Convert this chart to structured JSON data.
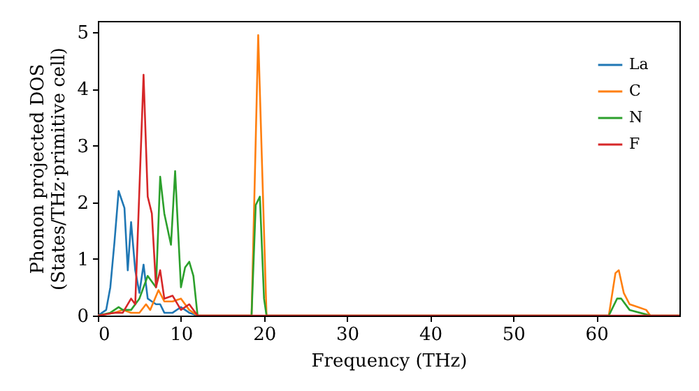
{
  "chart_data": {
    "type": "line",
    "xlabel": "Frequency (THz)",
    "ylabel": "Phonon projected DOS\n(States/THz·primitive cell)",
    "xlim": [
      0,
      70
    ],
    "xticks": [
      0,
      10,
      20,
      30,
      40,
      50,
      60
    ],
    "ylim": [
      0,
      5.2
    ],
    "yticks": [
      0,
      1,
      2,
      3,
      4,
      5
    ],
    "legend": "top right",
    "grid": false,
    "series": [
      {
        "name": "La",
        "color": "#1f77b4",
        "x": [
          0,
          1,
          1.5,
          2,
          2.5,
          3.2,
          3.6,
          4,
          4.5,
          5,
          5.5,
          6,
          6.5,
          7,
          7.5,
          8,
          9,
          10,
          11,
          12
        ],
        "values": [
          0,
          0.1,
          0.5,
          1.3,
          2.2,
          1.9,
          0.8,
          1.65,
          0.8,
          0.4,
          0.9,
          0.3,
          0.25,
          0.2,
          0.2,
          0.05,
          0.05,
          0.15,
          0.05,
          0
        ]
      },
      {
        "name": "C",
        "color": "#ff7f0e",
        "x": [
          0,
          2,
          3,
          4,
          5,
          5.8,
          6.3,
          7.3,
          8,
          9,
          10,
          11,
          12,
          18.5,
          19.3,
          20.3,
          61.5,
          62.3,
          62.7,
          63.3,
          64,
          65,
          66,
          66.5,
          70
        ],
        "values": [
          0,
          0.05,
          0.1,
          0.05,
          0.05,
          0.2,
          0.1,
          0.45,
          0.25,
          0.25,
          0.3,
          0.1,
          0,
          0,
          4.95,
          0,
          0,
          0.75,
          0.8,
          0.4,
          0.2,
          0.15,
          0.1,
          0,
          0
        ]
      },
      {
        "name": "N",
        "color": "#2ca02c",
        "x": [
          0,
          1.5,
          2.5,
          3,
          4,
          5,
          6,
          7,
          7.5,
          8,
          8.8,
          9.3,
          10,
          10.5,
          11,
          11.5,
          12,
          18.5,
          19,
          19.5,
          20,
          20.3,
          61.5,
          62.5,
          63,
          64,
          66,
          66.5,
          70
        ],
        "values": [
          0,
          0.05,
          0.15,
          0.1,
          0.1,
          0.3,
          0.7,
          0.5,
          2.45,
          1.8,
          1.25,
          2.55,
          0.5,
          0.85,
          0.95,
          0.7,
          0,
          0,
          1.95,
          2.1,
          0.3,
          0,
          0,
          0.3,
          0.3,
          0.1,
          0.02,
          0,
          0
        ]
      },
      {
        "name": "F",
        "color": "#d62728",
        "x": [
          0,
          2,
          3,
          4,
          4.5,
          5.5,
          6,
          6.5,
          7,
          7.5,
          8,
          9,
          10,
          11,
          12,
          70
        ],
        "values": [
          0,
          0.05,
          0.05,
          0.3,
          0.2,
          4.25,
          2.1,
          1.8,
          0.5,
          0.8,
          0.3,
          0.35,
          0.1,
          0.2,
          0,
          0
        ]
      }
    ]
  }
}
